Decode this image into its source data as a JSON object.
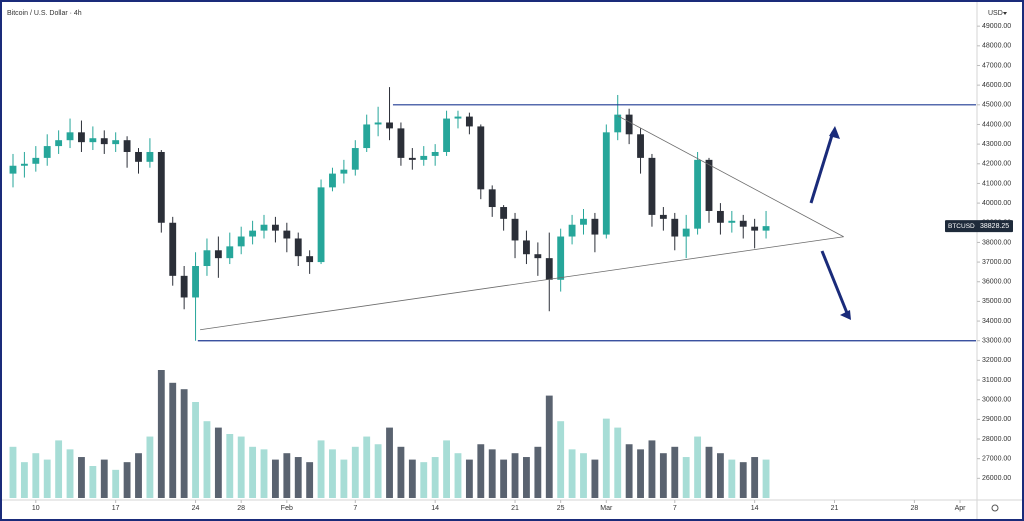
{
  "chart_data": {
    "type": "candlestick",
    "title": "Bitcoin / U.S. Dollar · 4h",
    "currency": "USD",
    "symbol": "BTCUSD",
    "x": [
      -2,
      -1,
      0,
      1,
      2,
      3,
      4,
      5,
      6,
      7,
      8,
      9,
      10,
      11,
      12,
      13,
      14,
      15,
      16,
      17,
      18,
      19,
      20,
      21,
      22,
      23,
      24,
      25,
      26,
      27,
      28,
      29,
      30,
      31,
      32,
      33,
      34,
      35,
      36,
      37,
      38,
      39,
      40,
      41,
      42,
      43,
      44,
      45,
      46,
      47,
      48,
      49,
      50,
      51,
      52,
      53,
      54,
      55,
      56,
      57,
      58,
      59,
      60,
      61,
      62,
      63,
      64
    ],
    "open": [
      41500,
      41900,
      42000,
      42300,
      42900,
      43200,
      43600,
      43100,
      43300,
      43000,
      43200,
      42600,
      42100,
      42600,
      39000,
      36300,
      35200,
      36800,
      37600,
      37200,
      37800,
      38300,
      38600,
      38900,
      38600,
      38200,
      37300,
      37000,
      40800,
      41500,
      41700,
      42800,
      44000,
      44100,
      43800,
      42300,
      42200,
      42400,
      42600,
      44300,
      44400,
      43900,
      40700,
      39800,
      39200,
      38100,
      37400,
      37200,
      36100,
      38300,
      38900,
      39200,
      38400,
      43600,
      44500,
      43500,
      42300,
      39400,
      39200,
      38300,
      38700,
      42200,
      39600,
      39000,
      39100,
      38800,
      38600
    ],
    "high": [
      42500,
      42600,
      42900,
      43500,
      43700,
      44300,
      44200,
      43900,
      43700,
      43600,
      43400,
      42800,
      43300,
      42700,
      39300,
      36800,
      37500,
      38200,
      38300,
      38500,
      38800,
      39100,
      39400,
      39300,
      39000,
      38500,
      37600,
      41200,
      41800,
      42200,
      43200,
      44500,
      44900,
      45900,
      44100,
      42800,
      42900,
      43000,
      44700,
      44700,
      44600,
      44000,
      40900,
      39900,
      39500,
      38600,
      38000,
      38500,
      38700,
      39400,
      39700,
      39500,
      44000,
      45500,
      44800,
      43800,
      42500,
      39800,
      39500,
      39400,
      42600,
      42300,
      40000,
      39600,
      39400,
      39200,
      39600
    ],
    "low": [
      40800,
      41300,
      41600,
      41900,
      42500,
      42800,
      42600,
      42700,
      42500,
      42600,
      41800,
      41500,
      41800,
      38500,
      35800,
      34600,
      33000,
      36300,
      36200,
      36900,
      37400,
      37900,
      38200,
      38000,
      37500,
      36800,
      36400,
      36900,
      40600,
      41000,
      41400,
      42600,
      43400,
      43200,
      41900,
      41700,
      41900,
      41900,
      42400,
      43800,
      43500,
      40200,
      39300,
      38600,
      37200,
      36900,
      36300,
      34500,
      35500,
      37900,
      38400,
      37500,
      38200,
      43200,
      43000,
      41500,
      38800,
      38600,
      37600,
      37200,
      38400,
      39000,
      38400,
      38500,
      38200,
      37700,
      38200
    ],
    "close": [
      41900,
      42000,
      42300,
      42900,
      43200,
      43600,
      43100,
      43300,
      43000,
      43200,
      42600,
      42100,
      42600,
      39000,
      36300,
      35200,
      36800,
      37600,
      37200,
      37800,
      38300,
      38600,
      38900,
      38600,
      38200,
      37300,
      37000,
      40800,
      41500,
      41700,
      42800,
      44000,
      44100,
      43800,
      42300,
      42200,
      42400,
      42600,
      44300,
      44400,
      43900,
      40700,
      39800,
      39200,
      38100,
      37400,
      37200,
      36100,
      38300,
      38900,
      39200,
      38400,
      43600,
      44500,
      43500,
      42300,
      39400,
      39200,
      38300,
      38700,
      42200,
      39600,
      39000,
      39100,
      38800,
      38600,
      38828.25
    ],
    "volume": [
      40,
      28,
      35,
      30,
      45,
      38,
      32,
      25,
      30,
      22,
      28,
      35,
      48,
      100,
      90,
      85,
      75,
      60,
      55,
      50,
      48,
      40,
      38,
      30,
      35,
      32,
      28,
      45,
      38,
      30,
      40,
      48,
      42,
      55,
      40,
      30,
      28,
      32,
      45,
      35,
      30,
      42,
      38,
      30,
      35,
      32,
      40,
      80,
      60,
      38,
      35,
      30,
      62,
      55,
      42,
      38,
      45,
      35,
      40,
      32,
      48,
      40,
      35,
      30,
      28,
      32,
      30
    ],
    "colors": {
      "up": "#26a69a",
      "down": "#2b2f38",
      "volume_up": "#a7ddd6",
      "volume_down": "#5a6370",
      "levels": "#1f3a93",
      "trend": "#6b6b6b",
      "frame": "#1a2b7a"
    },
    "xlim": [
      -2.7,
      82.4
    ],
    "xticks": [
      {
        "value": 0,
        "label": "10"
      },
      {
        "value": 7,
        "label": "17"
      },
      {
        "value": 14,
        "label": "24"
      },
      {
        "value": 18,
        "label": "28"
      },
      {
        "value": 22,
        "label": "Feb"
      },
      {
        "value": 28,
        "label": "7"
      },
      {
        "value": 35,
        "label": "14"
      },
      {
        "value": 42,
        "label": "21"
      },
      {
        "value": 46,
        "label": "25"
      },
      {
        "value": 50,
        "label": "Mar"
      },
      {
        "value": 56,
        "label": "7"
      },
      {
        "value": 63,
        "label": "14"
      },
      {
        "value": 70,
        "label": "21"
      },
      {
        "value": 77,
        "label": "28"
      },
      {
        "value": 81,
        "label": "Apr"
      }
    ],
    "ylim": [
      25000,
      50000
    ],
    "yticks": [
      {
        "value": 26000,
        "label": "26000.00"
      },
      {
        "value": 27000,
        "label": "27000.00"
      },
      {
        "value": 28000,
        "label": "28000.00"
      },
      {
        "value": 29000,
        "label": "29000.00"
      },
      {
        "value": 30000,
        "label": "30000.00"
      },
      {
        "value": 31000,
        "label": "31000.00"
      },
      {
        "value": 32000,
        "label": "32000.00"
      },
      {
        "value": 33000,
        "label": "33000.00"
      },
      {
        "value": 34000,
        "label": "34000.00"
      },
      {
        "value": 35000,
        "label": "35000.00"
      },
      {
        "value": 36000,
        "label": "36000.00"
      },
      {
        "value": 37000,
        "label": "37000.00"
      },
      {
        "value": 38000,
        "label": "38000.00"
      },
      {
        "value": 39000,
        "label": "39000.00"
      },
      {
        "value": 40000,
        "label": "40000.00"
      },
      {
        "value": 41000,
        "label": "41000.00"
      },
      {
        "value": 42000,
        "label": "42000.00"
      },
      {
        "value": 43000,
        "label": "43000.00"
      },
      {
        "value": 44000,
        "label": "44000.00"
      },
      {
        "value": 45000,
        "label": "45000.00"
      },
      {
        "value": 46000,
        "label": "46000.00"
      },
      {
        "value": 47000,
        "label": "47000.00"
      },
      {
        "value": 48000,
        "label": "48000.00"
      },
      {
        "value": 49000,
        "label": "49000.00"
      }
    ],
    "levels": [
      {
        "x1": 31.3,
        "y1": 45000,
        "x2": 82.4,
        "y2": 45000
      },
      {
        "x1": 14.2,
        "y1": 33000,
        "x2": 82.4,
        "y2": 33000
      }
    ],
    "trendlines": [
      {
        "x1": 14.4,
        "y1": 33560,
        "x2": 70.8,
        "y2": 38290
      },
      {
        "x1": 51,
        "y1": 44440,
        "x2": 70.8,
        "y2": 38290
      }
    ]
  }
}
